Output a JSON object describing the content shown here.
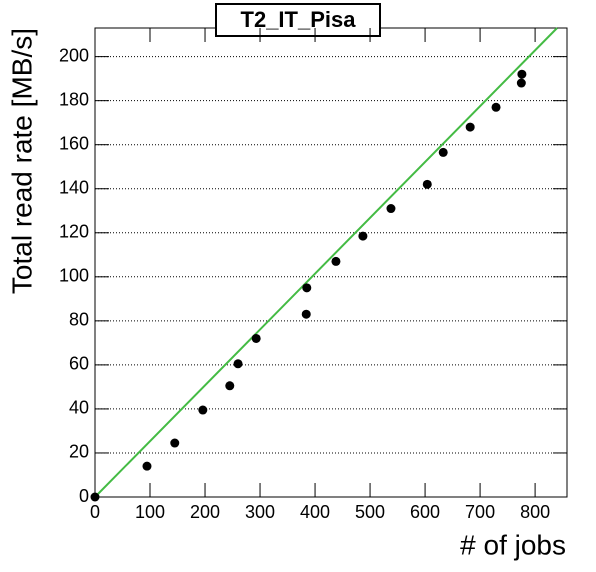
{
  "chart_data": {
    "type": "scatter",
    "title": "T2_IT_Pisa",
    "x_label": "# of jobs",
    "y_label": "Total read rate [MB/s]",
    "series": [
      {
        "name": "T2_IT_Pisa",
        "color": "#000000",
        "x": [
          0,
          94.5,
          145,
          196,
          245,
          260,
          293,
          384,
          385,
          438,
          487,
          538,
          604,
          633,
          682,
          729,
          775,
          776
        ],
        "values": [
          0,
          14,
          24.5,
          39.5,
          50.5,
          60.5,
          72,
          83,
          95,
          107,
          118.5,
          131,
          142,
          156.5,
          168,
          177,
          188,
          192
        ]
      }
    ],
    "fit": {
      "color": "#44bb44",
      "x": [
        0,
        840
      ],
      "values": [
        0,
        213
      ]
    },
    "xlim": [
      0,
      858
    ],
    "ylim": [
      0,
      213
    ],
    "xticks": [
      0,
      100,
      200,
      300,
      400,
      500,
      600,
      700,
      800
    ],
    "yticks": [
      0,
      20,
      40,
      60,
      80,
      100,
      120,
      140,
      160,
      180,
      200
    ],
    "grid": true
  }
}
